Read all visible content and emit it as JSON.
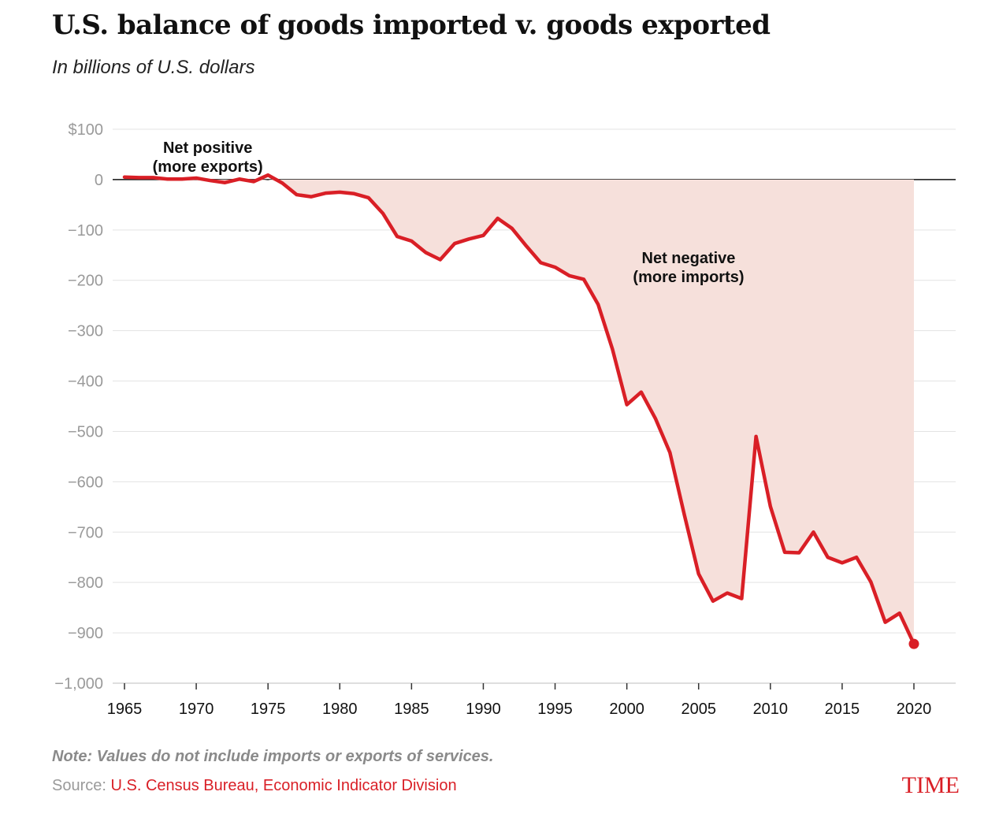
{
  "header": {
    "title": "U.S. balance of goods imported v. goods exported",
    "subtitle": "In billions of U.S. dollars"
  },
  "footer": {
    "note": "Note: Values do not include imports or exports of services.",
    "source_prefix": "Source: ",
    "source_link": "U.S. Census Bureau, Economic Indicator Division",
    "logo": "TIME"
  },
  "colors": {
    "line": "#d91f26",
    "area": "#f6e0db",
    "grid": "#e3e3e3",
    "zero_line": "#111111"
  },
  "chart_data": {
    "type": "area",
    "title": "U.S. balance of goods imported v. goods exported",
    "subtitle": "In billions of U.S. dollars",
    "xlabel": "",
    "ylabel": "",
    "xlim": [
      1965,
      2020
    ],
    "ylim": [
      -1000,
      100
    ],
    "grid": true,
    "y_ticks": [
      100,
      0,
      -100,
      -200,
      -300,
      -400,
      -500,
      -600,
      -700,
      -800,
      -900,
      -1000
    ],
    "y_tick_labels": [
      "$100",
      "0",
      "−100",
      "−200",
      "−300",
      "−400",
      "−500",
      "−600",
      "−700",
      "−800",
      "−900",
      "−1,000"
    ],
    "x_ticks": [
      1965,
      1970,
      1975,
      1980,
      1985,
      1990,
      1995,
      2000,
      2005,
      2010,
      2015,
      2020
    ],
    "x_tick_labels": [
      "1965",
      "1970",
      "1975",
      "1980",
      "1985",
      "1990",
      "1995",
      "2000",
      "2005",
      "2010",
      "2015",
      "2020"
    ],
    "annotations": [
      {
        "line1": "Net positive",
        "line2": "(more exports)",
        "x": 1970.8,
        "y": 53
      },
      {
        "line1": "Net negative",
        "line2": "(more imports)",
        "x": 2004.3,
        "y": -166
      }
    ],
    "series": [
      {
        "x": [
          1965,
          1966,
          1967,
          1968,
          1969,
          1970,
          1971,
          1972,
          1973,
          1974,
          1975,
          1976,
          1977,
          1978,
          1979,
          1980,
          1981,
          1982,
          1983,
          1984,
          1985,
          1986,
          1987,
          1988,
          1989,
          1990,
          1991,
          1992,
          1993,
          1994,
          1995,
          1996,
          1997,
          1998,
          1999,
          2000,
          2001,
          2002,
          2003,
          2004,
          2005,
          2006,
          2007,
          2008,
          2009,
          2010,
          2011,
          2012,
          2013,
          2014,
          2015,
          2016,
          2017,
          2018,
          2019,
          2020
        ],
        "values": [
          5,
          4,
          4,
          1,
          1,
          3,
          -2,
          -6,
          1,
          -4,
          9,
          -7,
          -30,
          -34,
          -27,
          -25,
          -28,
          -36,
          -67,
          -113,
          -122,
          -145,
          -159,
          -127,
          -118,
          -111,
          -77,
          -97,
          -132,
          -165,
          -174,
          -191,
          -198,
          -248,
          -337,
          -447,
          -422,
          -475,
          -542,
          -665,
          -783,
          -837,
          -821,
          -832,
          -510,
          -649,
          -740,
          -741,
          -700,
          -750,
          -761,
          -750,
          -799,
          -879,
          -861,
          -922
        ]
      }
    ],
    "highlight_last_point": true
  }
}
